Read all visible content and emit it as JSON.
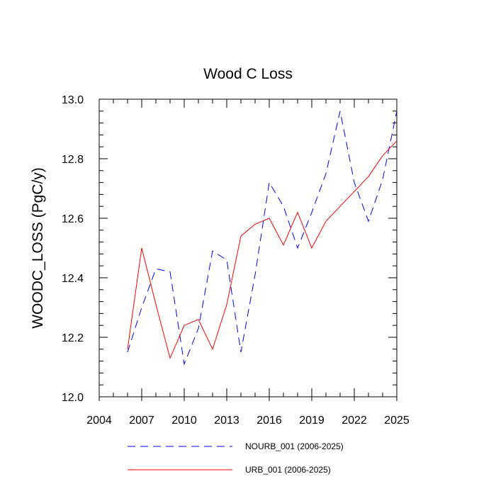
{
  "chart_data": {
    "type": "line",
    "title": "Wood C Loss",
    "xlabel": "",
    "ylabel": "WOODC_LOSS  (PgC/y)",
    "xlim": [
      2004,
      2025
    ],
    "ylim": [
      12.0,
      13.0
    ],
    "x_ticks": [
      2004,
      2007,
      2010,
      2013,
      2016,
      2019,
      2022,
      2025
    ],
    "x_tick_labels": [
      "2004",
      "2007",
      "2010",
      "2013",
      "2016",
      "2019",
      "2022",
      "2025"
    ],
    "y_ticks": [
      12.0,
      12.2,
      12.4,
      12.6,
      12.8,
      13.0
    ],
    "y_tick_labels": [
      "12.0",
      "12.2",
      "12.4",
      "12.6",
      "12.8",
      "13.0"
    ],
    "x": [
      2006,
      2007,
      2008,
      2009,
      2010,
      2011,
      2012,
      2013,
      2014,
      2015,
      2016,
      2017,
      2018,
      2019,
      2020,
      2021,
      2022,
      2023,
      2024,
      2025
    ],
    "series": [
      {
        "name": "NOURB_001 (2006-2025)",
        "color": "#0000ff",
        "dash": "dashed",
        "values": [
          12.15,
          12.3,
          12.43,
          12.42,
          12.11,
          12.23,
          12.49,
          12.46,
          12.15,
          12.41,
          12.72,
          12.64,
          12.5,
          12.62,
          12.75,
          12.96,
          12.72,
          12.59,
          12.73,
          12.96
        ]
      },
      {
        "name": "URB_001 (2006-2025)",
        "color": "#ff0000",
        "dash": "solid",
        "values": [
          12.16,
          12.5,
          12.31,
          12.13,
          12.24,
          12.26,
          12.16,
          12.31,
          12.54,
          12.58,
          12.6,
          12.51,
          12.62,
          12.5,
          12.59,
          12.64,
          12.69,
          12.74,
          12.81,
          12.86
        ]
      }
    ],
    "legend_position": "bottom"
  }
}
